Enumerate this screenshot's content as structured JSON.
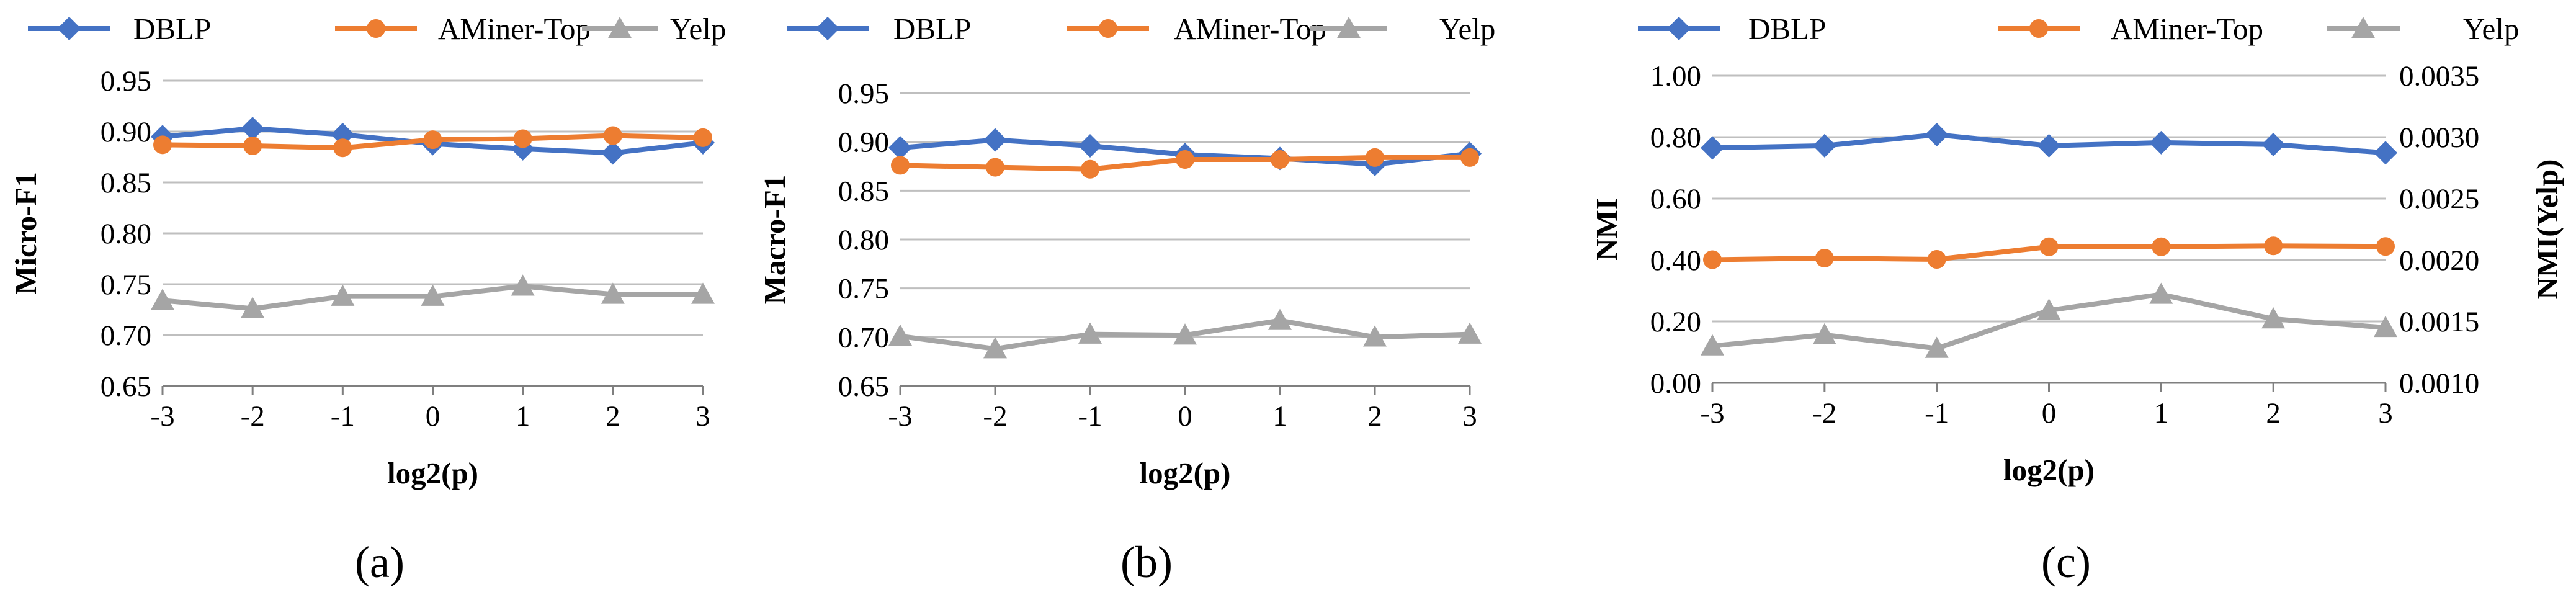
{
  "chart_data": [
    {
      "panel": "a",
      "type": "line",
      "caption": "(a)",
      "title": "",
      "xlabel": "log2(p)",
      "ylabel": "Micro-F1",
      "x": [
        -3,
        -2,
        -1,
        0,
        1,
        2,
        3
      ],
      "categories": [
        "-3",
        "-2",
        "-1",
        "0",
        "1",
        "2",
        "3"
      ],
      "ylim": [
        0.65,
        0.95
      ],
      "yticks": [
        "0.65",
        "0.70",
        "0.75",
        "0.80",
        "0.85",
        "0.90",
        "0.95"
      ],
      "legend_position": "top",
      "series": [
        {
          "name": "DBLP",
          "color": "#4472C4",
          "marker": "diamond",
          "values": [
            0.895,
            0.903,
            0.897,
            0.888,
            0.883,
            0.879,
            0.889
          ]
        },
        {
          "name": "AMiner-Top",
          "color": "#ED7D31",
          "marker": "circle",
          "values": [
            0.887,
            0.886,
            0.884,
            0.892,
            0.893,
            0.896,
            0.894
          ]
        },
        {
          "name": "Yelp",
          "color": "#A5A5A5",
          "marker": "triangle",
          "values": [
            0.734,
            0.726,
            0.738,
            0.738,
            0.748,
            0.74,
            0.74
          ]
        }
      ]
    },
    {
      "panel": "b",
      "type": "line",
      "caption": "(b)",
      "title": "",
      "xlabel": "log2(p)",
      "ylabel": "Macro-F1",
      "x": [
        -3,
        -2,
        -1,
        0,
        1,
        2,
        3
      ],
      "categories": [
        "-3",
        "-2",
        "-1",
        "0",
        "1",
        "2",
        "3"
      ],
      "ylim": [
        0.65,
        0.95
      ],
      "yticks": [
        "0.65",
        "0.70",
        "0.75",
        "0.80",
        "0.85",
        "0.90",
        "0.95"
      ],
      "legend_position": "top",
      "series": [
        {
          "name": "DBLP",
          "color": "#4472C4",
          "marker": "diamond",
          "values": [
            0.894,
            0.902,
            0.896,
            0.887,
            0.883,
            0.877,
            0.888
          ]
        },
        {
          "name": "AMiner-Top",
          "color": "#ED7D31",
          "marker": "circle",
          "values": [
            0.876,
            0.874,
            0.872,
            0.882,
            0.882,
            0.884,
            0.884
          ]
        },
        {
          "name": "Yelp",
          "color": "#A5A5A5",
          "marker": "triangle",
          "values": [
            0.701,
            0.688,
            0.703,
            0.702,
            0.717,
            0.7,
            0.703
          ]
        }
      ]
    },
    {
      "panel": "c",
      "type": "line",
      "caption": "(c)",
      "title": "",
      "xlabel": "log2(p)",
      "ylabel": "NMI",
      "y2label": "NMI(Yelp)",
      "x": [
        -3,
        -2,
        -1,
        0,
        1,
        2,
        3
      ],
      "categories": [
        "-3",
        "-2",
        "-1",
        "0",
        "1",
        "2",
        "3"
      ],
      "ylim": [
        0.0,
        1.0
      ],
      "yticks": [
        "0.00",
        "0.20",
        "0.40",
        "0.60",
        "0.80",
        "1.00"
      ],
      "y2lim": [
        0.001,
        0.0035
      ],
      "y2ticks": [
        "0.0010",
        "0.0015",
        "0.0020",
        "0.0025",
        "0.0030",
        "0.0035"
      ],
      "legend_position": "top",
      "series": [
        {
          "name": "DBLP",
          "color": "#4472C4",
          "marker": "diamond",
          "axis": "left",
          "values": [
            0.765,
            0.772,
            0.808,
            0.772,
            0.782,
            0.776,
            0.749
          ]
        },
        {
          "name": "AMiner-Top",
          "color": "#ED7D31",
          "marker": "circle",
          "axis": "left",
          "values": [
            0.401,
            0.406,
            0.402,
            0.443,
            0.443,
            0.446,
            0.444
          ]
        },
        {
          "name": "Yelp",
          "color": "#A5A5A5",
          "marker": "triangle",
          "axis": "right",
          "values": [
            0.0013,
            0.00139,
            0.00128,
            0.00159,
            0.00172,
            0.00152,
            0.00145
          ]
        }
      ]
    }
  ]
}
